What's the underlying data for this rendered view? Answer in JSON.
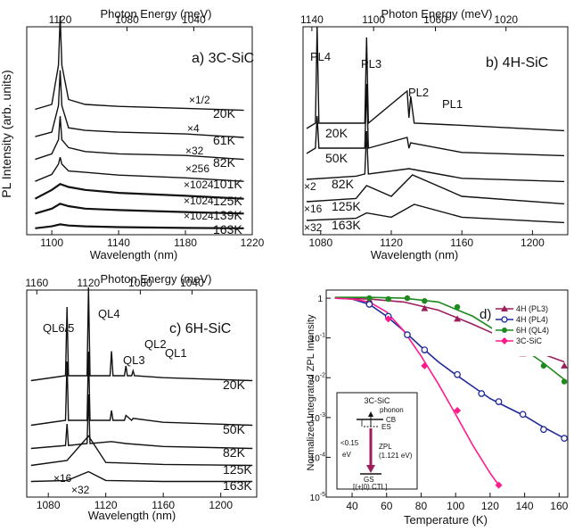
{
  "panels": {
    "a": {
      "title": "a) 3C-SiC",
      "top_axis_label": "Photon Energy (meV)",
      "bottom_axis_label": "Wavelength (nm)",
      "y_axis_label": "PL Intensity (arb. units)",
      "bottom_ticks": [
        "1100",
        "1140",
        "1180",
        "1220"
      ],
      "top_ticks": [
        "1120",
        "1080",
        "1040"
      ],
      "temperatures": [
        "20K",
        "61K",
        "82K",
        "101K",
        "125K",
        "139K",
        "163K"
      ],
      "multipliers": [
        "×1/2",
        "×4",
        "×32",
        "×256",
        "×1024",
        "×1024",
        "×1024"
      ]
    },
    "b": {
      "title": "b) 4H-SiC",
      "top_axis_label": "Photon Energy (meV)",
      "bottom_axis_label": "Wavelength (nm)",
      "bottom_ticks": [
        "1080",
        "1120",
        "1160",
        "1200"
      ],
      "top_ticks": [
        "1140",
        "1100",
        "1060",
        "1020"
      ],
      "peak_labels": [
        "PL4",
        "PL3",
        "PL2",
        "PL1"
      ],
      "temperatures": [
        "20K",
        "50K",
        "82K",
        "125K",
        "163K"
      ],
      "multipliers": [
        "×2",
        "×16",
        "×32"
      ]
    },
    "c": {
      "title": "c) 6H-SiC",
      "top_axis_label": "Photon Energy (meV)",
      "bottom_axis_label": "Wavelength (nm)",
      "bottom_ticks": [
        "1080",
        "1120",
        "1160",
        "1200"
      ],
      "top_ticks": [
        "1160",
        "1120",
        "1080",
        "1040"
      ],
      "peak_labels": [
        "QL6/5",
        "QL4",
        "QL3",
        "QL2",
        "QL1"
      ],
      "temperatures": [
        "20K",
        "50K",
        "82K",
        "125K",
        "163K"
      ],
      "multipliers": [
        "×16",
        "×32"
      ]
    },
    "d": {
      "title": "d)",
      "y_axis_label": "Normalized Integrated ZPL Intensity",
      "x_axis_label": "Temperature (K)",
      "x_ticks": [
        "40",
        "60",
        "80",
        "100",
        "120",
        "140",
        "160"
      ],
      "y_ticks": [
        "1",
        "10",
        "10",
        "10",
        "10",
        "10"
      ],
      "y_tick_exps": [
        "",
        "-1",
        "-2",
        "-3",
        "-4",
        "-5"
      ],
      "inset": {
        "title": "3C-SiC",
        "phonon": "phonon",
        "cb": "CB",
        "es": "ES",
        "energy": "<0.15",
        "energy_unit": "eV",
        "zpl": "ZPL",
        "zpl_energy": "(1.121 eV)",
        "gs": "GS",
        "ctl": "[(+|0) CTL]"
      }
    }
  },
  "colors": {
    "pl3": "#9c1f5c",
    "pl4": "#1f2a9a",
    "ql4": "#1d8a1d",
    "c3": "#ff1a8c"
  },
  "chart_data": [
    {
      "type": "line",
      "title": "a) 3C-SiC",
      "xlabel": "Wavelength (nm)",
      "ylabel": "PL Intensity (arb. units)",
      "xlim": [
        1085,
        1220
      ],
      "series": [
        {
          "name": "20K",
          "x": [
            1090,
            1100,
            1104,
            1105,
            1106,
            1110,
            1120,
            1140,
            1180,
            1215
          ],
          "y": [
            0.05,
            0.1,
            0.5,
            1.0,
            0.5,
            0.15,
            0.1,
            0.08,
            0.06,
            0.04
          ]
        },
        {
          "name": "61K",
          "x": [
            1090,
            1100,
            1104,
            1105,
            1106,
            1110,
            1120,
            1140,
            1180,
            1215
          ],
          "y": [
            0.05,
            0.1,
            0.4,
            0.8,
            0.4,
            0.15,
            0.12,
            0.1,
            0.08,
            0.04
          ]
        },
        {
          "name": "82K",
          "x": [
            1090,
            1100,
            1104,
            1105,
            1106,
            1110,
            1120,
            1140,
            1180,
            1215
          ],
          "y": [
            0.05,
            0.12,
            0.3,
            0.6,
            0.3,
            0.2,
            0.15,
            0.12,
            0.1,
            0.05
          ]
        },
        {
          "name": "101K",
          "x": [
            1090,
            1100,
            1104,
            1105,
            1106,
            1110,
            1120,
            1140,
            1180,
            1215
          ],
          "y": [
            0.05,
            0.15,
            0.3,
            0.4,
            0.3,
            0.2,
            0.18,
            0.14,
            0.1,
            0.05
          ]
        },
        {
          "name": "125K",
          "x": [
            1090,
            1100,
            1105,
            1110,
            1120,
            1140,
            1180,
            1215
          ],
          "y": [
            0.05,
            0.2,
            0.3,
            0.25,
            0.2,
            0.15,
            0.1,
            0.05
          ]
        },
        {
          "name": "139K",
          "x": [
            1090,
            1100,
            1105,
            1110,
            1120,
            1140,
            1180,
            1215
          ],
          "y": [
            0.05,
            0.15,
            0.25,
            0.2,
            0.15,
            0.12,
            0.08,
            0.05
          ]
        },
        {
          "name": "163K",
          "x": [
            1090,
            1100,
            1105,
            1110,
            1120,
            1140,
            1180,
            1215
          ],
          "y": [
            0.05,
            0.1,
            0.15,
            0.12,
            0.1,
            0.08,
            0.06,
            0.05
          ]
        }
      ]
    },
    {
      "type": "line",
      "title": "b) 4H-SiC",
      "xlabel": "Wavelength (nm)",
      "xlim": [
        1070,
        1220
      ],
      "series": [
        {
          "name": "20K",
          "x": [
            1072,
            1077,
            1078,
            1079,
            1105,
            1106,
            1107,
            1129,
            1130,
            1131,
            1133,
            1160,
            1218
          ],
          "y": [
            0.05,
            0.1,
            1.0,
            0.1,
            0.1,
            0.9,
            0.1,
            0.4,
            0.15,
            0.35,
            0.1,
            0.08,
            0.03
          ]
        },
        {
          "name": "50K",
          "x": [
            1072,
            1077,
            1078,
            1079,
            1105,
            1106,
            1107,
            1129,
            1130,
            1131,
            1160,
            1218
          ],
          "y": [
            0.05,
            0.1,
            0.4,
            0.1,
            0.1,
            0.7,
            0.1,
            0.2,
            0.1,
            0.15,
            0.06,
            0.03
          ]
        },
        {
          "name": "82K",
          "x": [
            1072,
            1100,
            1105,
            1106,
            1107,
            1130,
            1160,
            1218
          ],
          "y": [
            0.05,
            0.08,
            0.1,
            0.5,
            0.1,
            0.15,
            0.06,
            0.03
          ]
        },
        {
          "name": "125K",
          "x": [
            1072,
            1100,
            1106,
            1120,
            1132,
            1160,
            1218
          ],
          "y": [
            0.05,
            0.08,
            0.2,
            0.1,
            0.3,
            0.1,
            0.03
          ]
        },
        {
          "name": "163K",
          "x": [
            1072,
            1100,
            1106,
            1120,
            1133,
            1160,
            1218
          ],
          "y": [
            0.05,
            0.07,
            0.12,
            0.08,
            0.2,
            0.08,
            0.03
          ]
        }
      ]
    },
    {
      "type": "line",
      "title": "c) 6H-SiC",
      "xlabel": "Wavelength (nm)",
      "xlim": [
        1065,
        1225
      ],
      "series": [
        {
          "name": "20K",
          "x": [
            1068,
            1092,
            1093,
            1094,
            1107,
            1108,
            1109,
            1123,
            1124,
            1125,
            1133,
            1134,
            1135,
            1138,
            1139,
            1140,
            1160,
            1222
          ],
          "y": [
            0.05,
            0.1,
            0.8,
            0.1,
            0.1,
            1.0,
            0.1,
            0.1,
            0.35,
            0.1,
            0.1,
            0.2,
            0.1,
            0.1,
            0.15,
            0.1,
            0.08,
            0.05
          ]
        },
        {
          "name": "50K",
          "x": [
            1068,
            1092,
            1093,
            1094,
            1107,
            1108,
            1109,
            1123,
            1124,
            1125,
            1133,
            1134,
            1138,
            1139,
            1160,
            1222
          ],
          "y": [
            0.05,
            0.1,
            0.7,
            0.1,
            0.1,
            0.8,
            0.1,
            0.1,
            0.2,
            0.1,
            0.1,
            0.15,
            0.1,
            0.12,
            0.08,
            0.05
          ]
        },
        {
          "name": "82K",
          "x": [
            1068,
            1092,
            1093,
            1094,
            1107,
            1108,
            1109,
            1124,
            1134,
            1160,
            1222
          ],
          "y": [
            0.05,
            0.08,
            0.3,
            0.08,
            0.1,
            0.6,
            0.1,
            0.12,
            0.1,
            0.07,
            0.05
          ]
        },
        {
          "name": "125K",
          "x": [
            1068,
            1093,
            1108,
            1120,
            1160,
            1222
          ],
          "y": [
            0.05,
            0.1,
            0.35,
            0.08,
            0.06,
            0.05
          ]
        },
        {
          "name": "163K",
          "x": [
            1068,
            1093,
            1108,
            1120,
            1160,
            1222
          ],
          "y": [
            0.05,
            0.06,
            0.15,
            0.06,
            0.05,
            0.05
          ]
        }
      ]
    },
    {
      "type": "scatter",
      "title": "d)",
      "xlabel": "Temperature (K)",
      "ylabel": "Normalized Integrated ZPL Intensity",
      "xlim": [
        25,
        165
      ],
      "ylim": [
        1e-05,
        1.6
      ],
      "yscale": "log",
      "legend": "top-right",
      "series": [
        {
          "name": "4H (PL3)",
          "color": "#9c1f5c",
          "marker": "triangle",
          "x": [
            20,
            50,
            82,
            101,
            125,
            139,
            163
          ],
          "y": [
            1.0,
            0.9,
            0.55,
            0.3,
            0.15,
            0.04,
            0.02
          ],
          "fit_x": [
            30,
            50,
            70,
            90,
            110,
            130,
            150,
            163
          ],
          "fit_y": [
            1.0,
            0.95,
            0.8,
            0.5,
            0.22,
            0.09,
            0.04,
            0.025
          ]
        },
        {
          "name": "4H (PL4)",
          "color": "#1f2a9a",
          "marker": "open-circle",
          "x": [
            50,
            61,
            72,
            82,
            101,
            115,
            125,
            139,
            151,
            163
          ],
          "y": [
            0.7,
            0.35,
            0.12,
            0.05,
            0.012,
            0.004,
            0.0025,
            0.0012,
            0.0005,
            0.0003
          ],
          "fit_x": [
            30,
            40,
            50,
            60,
            70,
            80,
            90,
            100,
            110,
            120,
            130,
            140,
            150,
            163
          ],
          "fit_y": [
            1.0,
            0.95,
            0.7,
            0.35,
            0.15,
            0.06,
            0.025,
            0.012,
            0.006,
            0.003,
            0.0018,
            0.0011,
            0.0006,
            0.0003
          ]
        },
        {
          "name": "6H (QL4)",
          "color": "#1d8a1d",
          "marker": "circle",
          "x": [
            20,
            50,
            61,
            72,
            82,
            101,
            125,
            139,
            151,
            163
          ],
          "y": [
            1.0,
            1.0,
            0.95,
            1.0,
            0.85,
            0.6,
            0.2,
            0.05,
            0.02,
            0.008
          ],
          "fit_x": [
            30,
            50,
            70,
            90,
            110,
            130,
            150,
            163
          ],
          "fit_y": [
            1.05,
            1.05,
            1.0,
            0.8,
            0.35,
            0.1,
            0.025,
            0.009
          ]
        },
        {
          "name": "3C-SiC",
          "color": "#ff1a8c",
          "marker": "diamond",
          "x": [
            20,
            61,
            82,
            101,
            125
          ],
          "y": [
            1.0,
            0.3,
            0.02,
            0.0015,
            2e-05
          ],
          "fit_x": [
            30,
            40,
            50,
            60,
            70,
            80,
            90,
            100,
            110,
            120,
            125
          ],
          "fit_y": [
            1.0,
            0.95,
            0.8,
            0.45,
            0.15,
            0.035,
            0.007,
            0.0012,
            0.0002,
            4e-05,
            2e-05
          ]
        }
      ]
    }
  ]
}
